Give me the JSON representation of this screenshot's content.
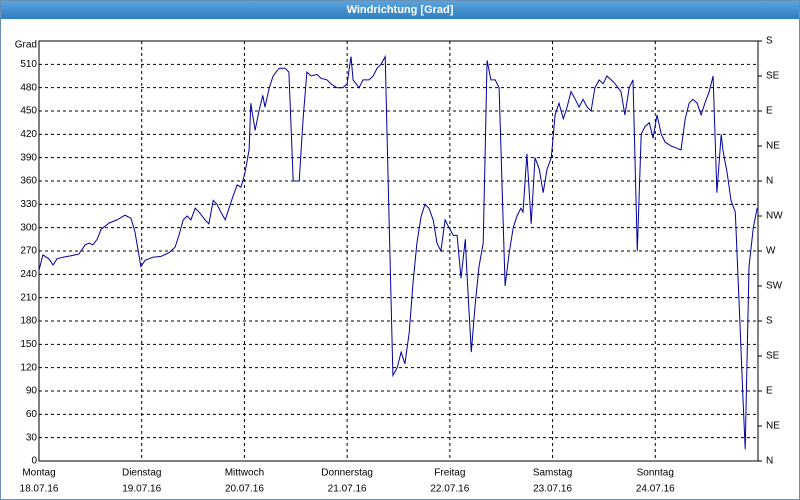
{
  "chart_data": {
    "type": "line",
    "title": "Windrichtung [Grad]",
    "x": [
      0,
      0.9,
      2.3,
      3.3,
      4.2,
      5.6,
      7.5,
      9.3,
      10.8,
      11.7,
      12.6,
      13.6,
      14.5,
      16.4,
      18.2,
      20.1,
      21.5,
      22.4,
      23.8,
      24.8,
      26.6,
      28.5,
      30.4,
      31.8,
      32.7,
      33.7,
      34.6,
      35.5,
      36.5,
      37.4,
      38.8,
      39.7,
      40.7,
      41.6,
      42.5,
      43.5,
      44.4,
      45.3,
      46.3,
      47.2,
      48.1,
      49.1,
      49.5,
      50.5,
      51.4,
      52.3,
      52.8,
      53.8,
      54.7,
      56.1,
      57.5,
      58.4,
      59.4,
      60.8,
      61.7,
      62.6,
      63.6,
      65.0,
      65.9,
      67.3,
      68.2,
      69.6,
      71.0,
      72.0,
      72.9,
      73.4,
      74.8,
      75.7,
      77.1,
      78.1,
      79.0,
      79.9,
      80.9,
      81.8,
      82.7,
      83.7,
      84.6,
      85.5,
      86.5,
      87.4,
      88.3,
      89.3,
      90.2,
      91.1,
      92.1,
      93.0,
      93.9,
      94.9,
      95.8,
      96.8,
      97.7,
      98.6,
      99.6,
      100.0,
      101.0,
      101.9,
      102.8,
      103.8,
      104.7,
      105.6,
      106.6,
      107.5,
      108.9,
      109.8,
      110.8,
      111.7,
      112.6,
      113.1,
      114.0,
      115.0,
      115.9,
      116.9,
      117.8,
      118.7,
      119.7,
      120.6,
      121.5,
      122.5,
      123.4,
      124.3,
      125.3,
      126.2,
      127.1,
      128.1,
      129.0,
      129.9,
      130.9,
      131.8,
      132.7,
      133.7,
      134.6,
      136.0,
      136.9,
      137.9,
      138.8,
      139.8,
      140.7,
      141.6,
      142.6,
      143.5,
      144.4,
      145.4,
      146.3,
      147.7,
      149.1,
      150.0,
      151.0,
      151.9,
      152.8,
      153.8,
      154.7,
      155.6,
      156.6,
      157.5,
      158.4,
      159.4,
      159.8,
      160.8,
      161.7,
      162.7,
      163.6,
      164.5,
      165.0,
      165.9,
      166.9,
      167.8
    ],
    "series": [
      {
        "color": "#0000a0",
        "values": [
          245,
          265,
          260,
          252,
          260,
          262,
          264,
          266,
          278,
          280,
          278,
          285,
          298,
          306,
          310,
          316,
          312,
          295,
          250,
          258,
          262,
          263,
          268,
          275,
          290,
          310,
          315,
          310,
          325,
          320,
          310,
          305,
          335,
          330,
          320,
          310,
          325,
          340,
          355,
          352,
          370,
          400,
          460,
          425,
          450,
          470,
          455,
          480,
          495,
          505,
          505,
          500,
          360,
          360,
          440,
          500,
          495,
          497,
          492,
          490,
          485,
          480,
          480,
          485,
          520,
          490,
          480,
          490,
          490,
          495,
          505,
          510,
          520,
          310,
          110,
          120,
          140,
          125,
          165,
          230,
          280,
          315,
          330,
          325,
          310,
          280,
          270,
          310,
          300,
          290,
          290,
          235,
          285,
          240,
          140,
          200,
          250,
          280,
          515,
          490,
          490,
          480,
          225,
          265,
          300,
          315,
          325,
          320,
          395,
          305,
          390,
          375,
          345,
          375,
          390,
          445,
          460,
          440,
          455,
          475,
          465,
          455,
          465,
          455,
          450,
          480,
          490,
          485,
          495,
          490,
          485,
          475,
          445,
          480,
          490,
          270,
          420,
          430,
          435,
          415,
          445,
          420,
          410,
          405,
          402,
          400,
          440,
          460,
          465,
          460,
          445,
          460,
          475,
          495,
          345,
          420,
          400,
          370,
          335,
          320,
          200,
          80,
          15,
          250,
          300,
          325
        ]
      }
    ],
    "xlim": [
      0,
      168
    ],
    "xticks": [
      {
        "value": 0,
        "label": "Montag",
        "date": "18.07.16"
      },
      {
        "value": 24,
        "label": "Dienstag",
        "date": "19.07.16"
      },
      {
        "value": 48,
        "label": "Mittwoch",
        "date": "20.07.16"
      },
      {
        "value": 72,
        "label": "Donnerstag",
        "date": "21.07.16"
      },
      {
        "value": 96,
        "label": "Freitag",
        "date": "22.07.16"
      },
      {
        "value": 120,
        "label": "Samstag",
        "date": "23.07.16"
      },
      {
        "value": 144,
        "label": "Sonntag",
        "date": "24.07.16"
      }
    ],
    "ylim": [
      0,
      540
    ],
    "yticks": [
      0,
      30,
      60,
      90,
      120,
      150,
      180,
      210,
      240,
      270,
      300,
      330,
      360,
      390,
      420,
      450,
      480,
      510,
      {
        "value": 540,
        "label": "Grad"
      }
    ],
    "y2lim": [
      0,
      540
    ],
    "y2ticks": [
      {
        "value": 0,
        "label": "N"
      },
      {
        "value": 45,
        "label": "NE"
      },
      {
        "value": 90,
        "label": "E"
      },
      {
        "value": 135,
        "label": "SE"
      },
      {
        "value": 180,
        "label": "S"
      },
      {
        "value": 225,
        "label": "SW"
      },
      {
        "value": 270,
        "label": "W"
      },
      {
        "value": 315,
        "label": "NW"
      },
      {
        "value": 360,
        "label": "N"
      },
      {
        "value": 405,
        "label": "NE"
      },
      {
        "value": 450,
        "label": "E"
      },
      {
        "value": 495,
        "label": "SE"
      },
      {
        "value": 540,
        "label": "S"
      }
    ],
    "grid": true
  }
}
